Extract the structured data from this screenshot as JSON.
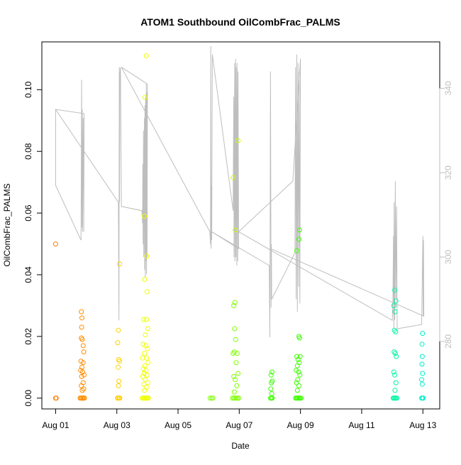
{
  "chart_data": {
    "type": "scatter",
    "title": "ATOM1 Southbound OilCombFrac_PALMS",
    "xlabel": "Date",
    "ylabel": "OilCombFrac_PALMS",
    "x_ticks": [
      "Aug 01",
      "Aug 03",
      "Aug 05",
      "Aug 07",
      "Aug 09",
      "Aug 11",
      "Aug 13"
    ],
    "x_tick_values": [
      1,
      3,
      5,
      7,
      9,
      11,
      13
    ],
    "xlim": [
      0.55,
      13.55
    ],
    "y_ticks": [
      "0.00",
      "0.02",
      "0.04",
      "0.06",
      "0.08",
      "0.10"
    ],
    "y_tick_values": [
      0,
      0.02,
      0.04,
      0.06,
      0.08,
      0.1
    ],
    "ylim": [
      -0.0035,
      0.1155
    ],
    "y2_ticks": [
      "280",
      "300",
      "320",
      "340"
    ],
    "y2_tick_values": [
      280,
      300,
      320,
      340
    ],
    "y2lim": [
      264,
      351
    ],
    "grid": false,
    "colors": {
      "axis": "#000000",
      "secondary_axis": "#bebebe",
      "secondary_line": "#bebebe",
      "point_colors": [
        "#ff7f00",
        "#ff8c00",
        "#ffd000",
        "#f0ff00",
        "#c8ff00",
        "#7fff00",
        "#3cff00",
        "#00ff6a",
        "#00f5a0",
        "#00f0c8"
      ]
    },
    "points": [
      {
        "x": 1.0,
        "y": 0.05,
        "c": 0
      },
      {
        "x": 1.0,
        "y": 0.0,
        "c": 0
      },
      {
        "x": 1.02,
        "y": 0.0,
        "c": 0
      },
      {
        "x": 1.84,
        "y": 0.028,
        "c": 1
      },
      {
        "x": 1.86,
        "y": 0.026,
        "c": 1
      },
      {
        "x": 1.85,
        "y": 0.023,
        "c": 1
      },
      {
        "x": 1.84,
        "y": 0.0195,
        "c": 1
      },
      {
        "x": 1.87,
        "y": 0.019,
        "c": 1
      },
      {
        "x": 1.9,
        "y": 0.017,
        "c": 1
      },
      {
        "x": 1.92,
        "y": 0.015,
        "c": 1
      },
      {
        "x": 1.83,
        "y": 0.012,
        "c": 1
      },
      {
        "x": 1.9,
        "y": 0.0115,
        "c": 1
      },
      {
        "x": 1.86,
        "y": 0.01,
        "c": 1
      },
      {
        "x": 1.82,
        "y": 0.009,
        "c": 1
      },
      {
        "x": 1.88,
        "y": 0.0085,
        "c": 1
      },
      {
        "x": 1.93,
        "y": 0.0075,
        "c": 1
      },
      {
        "x": 1.85,
        "y": 0.007,
        "c": 1
      },
      {
        "x": 1.9,
        "y": 0.005,
        "c": 1
      },
      {
        "x": 1.84,
        "y": 0.004,
        "c": 1
      },
      {
        "x": 1.92,
        "y": 0.003,
        "c": 1
      },
      {
        "x": 1.87,
        "y": 0.0025,
        "c": 1
      },
      {
        "x": 1.8,
        "y": 0.0,
        "c": 1
      },
      {
        "x": 1.83,
        "y": 0.0,
        "c": 1
      },
      {
        "x": 1.86,
        "y": 0.0,
        "c": 1
      },
      {
        "x": 1.89,
        "y": 0.0,
        "c": 1
      },
      {
        "x": 1.92,
        "y": 0.0,
        "c": 1
      },
      {
        "x": 1.94,
        "y": 0.0,
        "c": 1
      },
      {
        "x": 3.09,
        "y": 0.0435,
        "c": 2
      },
      {
        "x": 3.05,
        "y": 0.022,
        "c": 2
      },
      {
        "x": 3.03,
        "y": 0.018,
        "c": 2
      },
      {
        "x": 3.06,
        "y": 0.0125,
        "c": 2
      },
      {
        "x": 3.09,
        "y": 0.012,
        "c": 2
      },
      {
        "x": 3.04,
        "y": 0.01,
        "c": 2
      },
      {
        "x": 3.07,
        "y": 0.0055,
        "c": 2
      },
      {
        "x": 3.05,
        "y": 0.004,
        "c": 2
      },
      {
        "x": 3.02,
        "y": 0.0,
        "c": 2
      },
      {
        "x": 3.05,
        "y": 0.0,
        "c": 2
      },
      {
        "x": 3.08,
        "y": 0.0,
        "c": 2
      },
      {
        "x": 3.1,
        "y": 0.0,
        "c": 2
      },
      {
        "x": 3.96,
        "y": 0.111,
        "c": 3
      },
      {
        "x": 3.92,
        "y": 0.0975,
        "c": 3
      },
      {
        "x": 3.9,
        "y": 0.059,
        "c": 3
      },
      {
        "x": 3.98,
        "y": 0.046,
        "c": 3
      },
      {
        "x": 3.91,
        "y": 0.0385,
        "c": 3
      },
      {
        "x": 3.99,
        "y": 0.0345,
        "c": 3
      },
      {
        "x": 3.88,
        "y": 0.0255,
        "c": 3
      },
      {
        "x": 3.97,
        "y": 0.0255,
        "c": 3
      },
      {
        "x": 4.01,
        "y": 0.0225,
        "c": 3
      },
      {
        "x": 3.93,
        "y": 0.0205,
        "c": 3
      },
      {
        "x": 3.86,
        "y": 0.0175,
        "c": 3
      },
      {
        "x": 3.95,
        "y": 0.017,
        "c": 3
      },
      {
        "x": 4.0,
        "y": 0.016,
        "c": 3
      },
      {
        "x": 3.9,
        "y": 0.0145,
        "c": 3
      },
      {
        "x": 3.84,
        "y": 0.013,
        "c": 3
      },
      {
        "x": 3.97,
        "y": 0.013,
        "c": 3
      },
      {
        "x": 4.02,
        "y": 0.0115,
        "c": 3
      },
      {
        "x": 3.92,
        "y": 0.0105,
        "c": 3
      },
      {
        "x": 3.87,
        "y": 0.0095,
        "c": 3
      },
      {
        "x": 3.95,
        "y": 0.009,
        "c": 3
      },
      {
        "x": 3.89,
        "y": 0.008,
        "c": 3
      },
      {
        "x": 3.99,
        "y": 0.0075,
        "c": 3
      },
      {
        "x": 3.85,
        "y": 0.007,
        "c": 3
      },
      {
        "x": 3.93,
        "y": 0.006,
        "c": 3
      },
      {
        "x": 4.01,
        "y": 0.005,
        "c": 3
      },
      {
        "x": 3.88,
        "y": 0.0045,
        "c": 3
      },
      {
        "x": 3.96,
        "y": 0.0035,
        "c": 3
      },
      {
        "x": 3.91,
        "y": 0.0025,
        "c": 3
      },
      {
        "x": 3.83,
        "y": 0.0,
        "c": 3
      },
      {
        "x": 3.86,
        "y": 0.0,
        "c": 3
      },
      {
        "x": 3.89,
        "y": 0.0,
        "c": 3
      },
      {
        "x": 3.92,
        "y": 0.0,
        "c": 3
      },
      {
        "x": 3.95,
        "y": 0.0,
        "c": 3
      },
      {
        "x": 3.98,
        "y": 0.0,
        "c": 3
      },
      {
        "x": 4.01,
        "y": 0.0,
        "c": 3
      },
      {
        "x": 4.03,
        "y": 0.0,
        "c": 3
      },
      {
        "x": 6.96,
        "y": 0.0835,
        "c": 4
      },
      {
        "x": 6.8,
        "y": 0.0715,
        "c": 4
      },
      {
        "x": 6.87,
        "y": 0.0545,
        "c": 4
      },
      {
        "x": 6.86,
        "y": 0.031,
        "c": 5
      },
      {
        "x": 6.82,
        "y": 0.03,
        "c": 5
      },
      {
        "x": 6.85,
        "y": 0.0225,
        "c": 5
      },
      {
        "x": 6.88,
        "y": 0.019,
        "c": 5
      },
      {
        "x": 6.84,
        "y": 0.015,
        "c": 5
      },
      {
        "x": 6.8,
        "y": 0.0145,
        "c": 5
      },
      {
        "x": 6.93,
        "y": 0.0145,
        "c": 5
      },
      {
        "x": 6.9,
        "y": 0.0115,
        "c": 5
      },
      {
        "x": 6.96,
        "y": 0.008,
        "c": 5
      },
      {
        "x": 6.82,
        "y": 0.007,
        "c": 5
      },
      {
        "x": 6.87,
        "y": 0.006,
        "c": 5
      },
      {
        "x": 6.92,
        "y": 0.004,
        "c": 5
      },
      {
        "x": 6.84,
        "y": 0.002,
        "c": 5
      },
      {
        "x": 6.1,
        "y": 0.0,
        "c": 5
      },
      {
        "x": 6.05,
        "y": 0.0,
        "c": 5
      },
      {
        "x": 6.14,
        "y": 0.0,
        "c": 5
      },
      {
        "x": 6.78,
        "y": 0.0,
        "c": 5
      },
      {
        "x": 6.82,
        "y": 0.0,
        "c": 5
      },
      {
        "x": 6.86,
        "y": 0.0,
        "c": 5
      },
      {
        "x": 6.9,
        "y": 0.0,
        "c": 5
      },
      {
        "x": 6.94,
        "y": 0.0,
        "c": 5
      },
      {
        "x": 6.98,
        "y": 0.0,
        "c": 5
      },
      {
        "x": 8.07,
        "y": 0.0085,
        "c": 6
      },
      {
        "x": 8.04,
        "y": 0.0075,
        "c": 6
      },
      {
        "x": 8.08,
        "y": 0.0055,
        "c": 6
      },
      {
        "x": 8.05,
        "y": 0.005,
        "c": 6
      },
      {
        "x": 8.03,
        "y": 0.003,
        "c": 6
      },
      {
        "x": 8.06,
        "y": 0.0015,
        "c": 6
      },
      {
        "x": 8.02,
        "y": 0.0,
        "c": 6
      },
      {
        "x": 8.05,
        "y": 0.0,
        "c": 6
      },
      {
        "x": 8.08,
        "y": 0.0,
        "c": 6
      },
      {
        "x": 8.97,
        "y": 0.0545,
        "c": 6
      },
      {
        "x": 8.95,
        "y": 0.0515,
        "c": 6
      },
      {
        "x": 8.88,
        "y": 0.0478,
        "c": 6
      },
      {
        "x": 8.95,
        "y": 0.02,
        "c": 6
      },
      {
        "x": 8.97,
        "y": 0.0195,
        "c": 6
      },
      {
        "x": 8.88,
        "y": 0.0135,
        "c": 6
      },
      {
        "x": 8.99,
        "y": 0.0135,
        "c": 6
      },
      {
        "x": 8.92,
        "y": 0.0125,
        "c": 6
      },
      {
        "x": 8.96,
        "y": 0.0115,
        "c": 6
      },
      {
        "x": 8.9,
        "y": 0.0105,
        "c": 6
      },
      {
        "x": 8.86,
        "y": 0.009,
        "c": 6
      },
      {
        "x": 8.94,
        "y": 0.0085,
        "c": 6
      },
      {
        "x": 8.98,
        "y": 0.0075,
        "c": 6
      },
      {
        "x": 8.91,
        "y": 0.006,
        "c": 6
      },
      {
        "x": 8.87,
        "y": 0.005,
        "c": 6
      },
      {
        "x": 8.95,
        "y": 0.004,
        "c": 6
      },
      {
        "x": 8.9,
        "y": 0.0025,
        "c": 6
      },
      {
        "x": 8.84,
        "y": 0.0,
        "c": 6
      },
      {
        "x": 8.87,
        "y": 0.0,
        "c": 6
      },
      {
        "x": 8.9,
        "y": 0.0,
        "c": 6
      },
      {
        "x": 8.93,
        "y": 0.0,
        "c": 6
      },
      {
        "x": 8.96,
        "y": 0.0,
        "c": 6
      },
      {
        "x": 8.99,
        "y": 0.0,
        "c": 6
      },
      {
        "x": 9.02,
        "y": 0.0,
        "c": 6
      },
      {
        "x": 12.08,
        "y": 0.035,
        "c": 8
      },
      {
        "x": 12.05,
        "y": 0.03,
        "c": 8
      },
      {
        "x": 12.12,
        "y": 0.0315,
        "c": 8
      },
      {
        "x": 12.09,
        "y": 0.028,
        "c": 8
      },
      {
        "x": 12.07,
        "y": 0.022,
        "c": 8
      },
      {
        "x": 12.11,
        "y": 0.0215,
        "c": 8
      },
      {
        "x": 12.06,
        "y": 0.015,
        "c": 8
      },
      {
        "x": 12.1,
        "y": 0.0145,
        "c": 8
      },
      {
        "x": 12.13,
        "y": 0.0135,
        "c": 8
      },
      {
        "x": 12.05,
        "y": 0.0085,
        "c": 8
      },
      {
        "x": 12.08,
        "y": 0.0075,
        "c": 8
      },
      {
        "x": 12.12,
        "y": 0.005,
        "c": 8
      },
      {
        "x": 12.09,
        "y": 0.0025,
        "c": 8
      },
      {
        "x": 12.03,
        "y": 0.0,
        "c": 8
      },
      {
        "x": 12.06,
        "y": 0.0,
        "c": 8
      },
      {
        "x": 12.09,
        "y": 0.0,
        "c": 8
      },
      {
        "x": 12.12,
        "y": 0.0,
        "c": 8
      },
      {
        "x": 12.15,
        "y": 0.0,
        "c": 8
      },
      {
        "x": 12.99,
        "y": 0.021,
        "c": 9
      },
      {
        "x": 12.97,
        "y": 0.0175,
        "c": 9
      },
      {
        "x": 12.98,
        "y": 0.0135,
        "c": 9
      },
      {
        "x": 12.97,
        "y": 0.011,
        "c": 9
      },
      {
        "x": 12.99,
        "y": 0.008,
        "c": 9
      },
      {
        "x": 12.96,
        "y": 0.006,
        "c": 9
      },
      {
        "x": 12.98,
        "y": 0.0045,
        "c": 9
      },
      {
        "x": 12.96,
        "y": 0.0,
        "c": 9
      },
      {
        "x": 12.99,
        "y": 0.0,
        "c": 9
      },
      {
        "x": 13.01,
        "y": 0.0,
        "c": 9
      }
    ],
    "secondary_series": [
      [
        1.0,
        335
      ],
      [
        1.0,
        317
      ],
      [
        1.83,
        304
      ],
      [
        1.85,
        342
      ],
      [
        1.86,
        307
      ],
      [
        1.87,
        335
      ],
      [
        1.88,
        306
      ],
      [
        1.9,
        333
      ],
      [
        1.92,
        306
      ],
      [
        1.93,
        334
      ],
      [
        1.0,
        335
      ],
      [
        3.05,
        313
      ],
      [
        3.07,
        285
      ],
      [
        3.08,
        345
      ],
      [
        3.09,
        313
      ],
      [
        3.1,
        343
      ],
      [
        3.12,
        345
      ],
      [
        3.15,
        312
      ],
      [
        3.82,
        311
      ],
      [
        3.84,
        308
      ],
      [
        3.85,
        322
      ],
      [
        3.86,
        303
      ],
      [
        3.87,
        330
      ],
      [
        3.88,
        300
      ],
      [
        3.9,
        333
      ],
      [
        3.91,
        297
      ],
      [
        3.92,
        336
      ],
      [
        3.93,
        295
      ],
      [
        3.94,
        338
      ],
      [
        3.95,
        299
      ],
      [
        3.96,
        341
      ],
      [
        3.97,
        296
      ],
      [
        3.98,
        339
      ],
      [
        3.99,
        300
      ],
      [
        4.0,
        341
      ],
      [
        3.15,
        345
      ],
      [
        6.04,
        306
      ],
      [
        6.06,
        303
      ],
      [
        6.07,
        350
      ],
      [
        6.08,
        302
      ],
      [
        6.09,
        317
      ],
      [
        6.1,
        304
      ],
      [
        6.12,
        348
      ],
      [
        6.8,
        311
      ],
      [
        6.82,
        338
      ],
      [
        6.83,
        300
      ],
      [
        6.85,
        346
      ],
      [
        6.86,
        299
      ],
      [
        6.88,
        347
      ],
      [
        6.89,
        300
      ],
      [
        6.9,
        345
      ],
      [
        6.92,
        298
      ],
      [
        6.93,
        346
      ],
      [
        6.95,
        299
      ],
      [
        6.96,
        344
      ],
      [
        6.98,
        302
      ],
      [
        6.1,
        306
      ],
      [
        7.98,
        298
      ],
      [
        8.0,
        281
      ],
      [
        8.02,
        344
      ],
      [
        8.04,
        288
      ],
      [
        8.05,
        303
      ],
      [
        8.06,
        290
      ],
      [
        8.82,
        301
      ],
      [
        8.84,
        345
      ],
      [
        8.86,
        290
      ],
      [
        8.88,
        348
      ],
      [
        8.9,
        287
      ],
      [
        8.92,
        346
      ],
      [
        8.94,
        293
      ],
      [
        8.96,
        344
      ],
      [
        8.98,
        289
      ],
      [
        9.0,
        347
      ],
      [
        8.75,
        318
      ],
      [
        6.98,
        306
      ],
      [
        12.0,
        285
      ],
      [
        12.02,
        290
      ],
      [
        12.04,
        305
      ],
      [
        12.05,
        283
      ],
      [
        12.06,
        313
      ],
      [
        12.08,
        285
      ],
      [
        12.1,
        318
      ],
      [
        12.12,
        290
      ],
      [
        12.14,
        312
      ],
      [
        12.16,
        283
      ],
      [
        12.96,
        284
      ],
      [
        12.98,
        295
      ],
      [
        13.0,
        305
      ],
      [
        13.01,
        286
      ],
      [
        13.02,
        304
      ],
      [
        13.03,
        286
      ],
      [
        8.02,
        302
      ]
    ]
  }
}
